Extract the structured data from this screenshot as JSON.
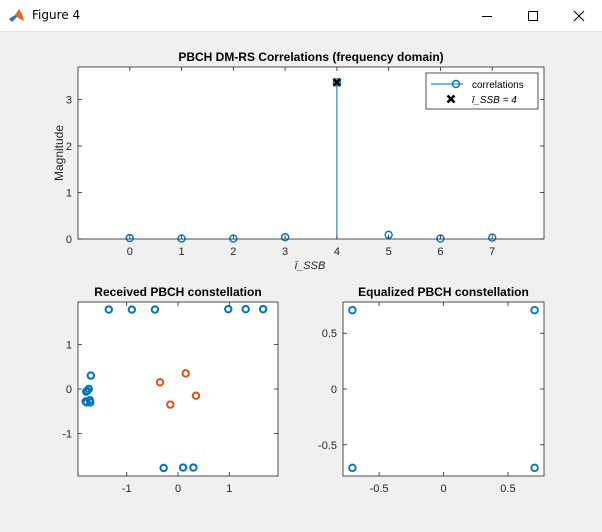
{
  "window": {
    "title": "Figure 4",
    "icons": {
      "app": "matlab-icon",
      "minimize": "minimize-icon",
      "maximize": "maximize-icon",
      "close": "close-icon"
    }
  },
  "colors": {
    "series": "#0072bd",
    "series2": "#d95319",
    "marker2": "#000000"
  },
  "chart_data": [
    {
      "type": "stem",
      "title": "PBCH DM-RS Correlations (frequency domain)",
      "xlabel": "ī_SSB",
      "ylabel": "Magnitude",
      "x": [
        0,
        1,
        2,
        3,
        4,
        5,
        6,
        7
      ],
      "values": [
        0.02,
        0.01,
        0.01,
        0.04,
        3.37,
        0.09,
        0.01,
        0.03
      ],
      "xlim": [
        -1,
        8
      ],
      "ylim": [
        0,
        3.7
      ],
      "xticks": [
        "0",
        "1",
        "2",
        "3",
        "4",
        "5",
        "6",
        "7"
      ],
      "yticks": [
        "0",
        "1",
        "2",
        "3"
      ],
      "detected": {
        "x": 4,
        "y": 3.37
      },
      "legend": {
        "position": "top-right",
        "entries": [
          "correlations",
          "ī_SSB = 4"
        ]
      }
    },
    {
      "type": "scatter",
      "title": "Received PBCH constellation",
      "xlim": [
        -1.95,
        1.95
      ],
      "ylim": [
        -1.95,
        1.95
      ],
      "xticks": [
        "-1",
        "0",
        "1"
      ],
      "yticks": [
        "-1",
        "0",
        "1"
      ],
      "series": [
        {
          "points": [
            [
              -1.35,
              1.78
            ],
            [
              -0.9,
              1.78
            ],
            [
              -0.45,
              1.78
            ],
            [
              0.98,
              1.79
            ],
            [
              1.32,
              1.79
            ],
            [
              1.66,
              1.79
            ],
            [
              -1.78,
              -0.3
            ],
            [
              -1.74,
              0.0
            ],
            [
              -1.7,
              0.3
            ],
            [
              -1.8,
              -0.28
            ],
            [
              -1.79,
              -0.06
            ],
            [
              -1.77,
              -0.04
            ],
            [
              -1.72,
              -0.25
            ],
            [
              -1.71,
              -0.3
            ],
            [
              -0.28,
              -1.77
            ],
            [
              0.1,
              -1.76
            ],
            [
              0.3,
              -1.76
            ]
          ]
        },
        {
          "points": [
            [
              -0.35,
              0.15
            ],
            [
              0.15,
              0.35
            ],
            [
              0.35,
              -0.15
            ],
            [
              -0.15,
              -0.35
            ]
          ]
        }
      ]
    },
    {
      "type": "scatter",
      "title": "Equalized PBCH constellation",
      "xlim": [
        -0.78,
        0.78
      ],
      "ylim": [
        -0.78,
        0.78
      ],
      "xticks": [
        "-0.5",
        "0",
        "0.5"
      ],
      "yticks": [
        "-0.5",
        "0",
        "0.5"
      ],
      "series": [
        {
          "points": [
            [
              -0.707,
              0.707
            ],
            [
              0.707,
              0.707
            ],
            [
              -0.707,
              -0.707
            ],
            [
              0.707,
              -0.707
            ]
          ]
        }
      ]
    }
  ]
}
